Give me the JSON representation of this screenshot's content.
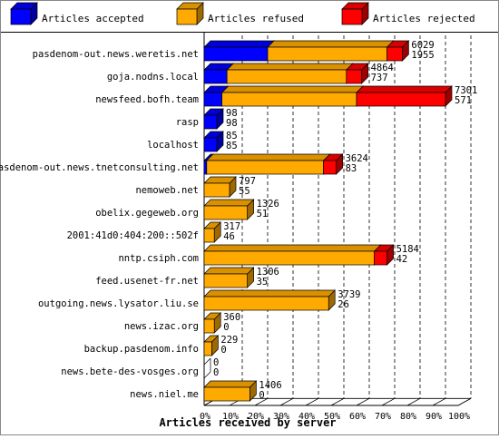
{
  "chart_data": {
    "type": "bar",
    "stacked": true,
    "orientation": "horizontal",
    "title": "",
    "xlabel": "Articles received by server",
    "ylabel": "",
    "xlim": [
      0,
      100
    ],
    "x_ticks": [
      "0%",
      "10%",
      "20%",
      "30%",
      "40%",
      "50%",
      "60%",
      "70%",
      "80%",
      "90%",
      "100%"
    ],
    "grid": true,
    "legend_position": "top",
    "series": [
      {
        "name": "Articles accepted",
        "color": "#0000ff"
      },
      {
        "name": "Articles refused",
        "color": "#ffaa00"
      },
      {
        "name": "Articles rejected",
        "color": "#ff0000"
      }
    ],
    "categories": [
      {
        "label": "pasdenom-out.news.weretis.net",
        "accepted_pct": 25,
        "refused_pct": 47,
        "rejected_pct": 6,
        "total": "6029",
        "second": "1955"
      },
      {
        "label": "goja.nodns.local",
        "accepted_pct": 9,
        "refused_pct": 47,
        "rejected_pct": 6,
        "total": "4864",
        "second": "737"
      },
      {
        "label": "newsfeed.bofh.team",
        "accepted_pct": 7,
        "refused_pct": 53,
        "rejected_pct": 35,
        "total": "7301",
        "second": "571"
      },
      {
        "label": "rasp",
        "accepted_pct": 5,
        "refused_pct": 0,
        "rejected_pct": 0,
        "total": "98",
        "second": "98"
      },
      {
        "label": "localhost",
        "accepted_pct": 5,
        "refused_pct": 0,
        "rejected_pct": 0,
        "total": "85",
        "second": "85"
      },
      {
        "label": "pasdenom-out.news.tnetconsulting.net",
        "accepted_pct": 1,
        "refused_pct": 46,
        "rejected_pct": 5,
        "total": "3624",
        "second": "83"
      },
      {
        "label": "nemoweb.net",
        "accepted_pct": 0,
        "refused_pct": 10,
        "rejected_pct": 0,
        "total": "797",
        "second": "55"
      },
      {
        "label": "obelix.gegeweb.org",
        "accepted_pct": 0,
        "refused_pct": 17,
        "rejected_pct": 0,
        "total": "1326",
        "second": "51"
      },
      {
        "label": "2001:41d0:404:200::502f",
        "accepted_pct": 0,
        "refused_pct": 4,
        "rejected_pct": 0,
        "total": "317",
        "second": "46"
      },
      {
        "label": "nntp.csiph.com",
        "accepted_pct": 0,
        "refused_pct": 67,
        "rejected_pct": 5,
        "total": "5184",
        "second": "42"
      },
      {
        "label": "feed.usenet-fr.net",
        "accepted_pct": 0,
        "refused_pct": 17,
        "rejected_pct": 0,
        "total": "1306",
        "second": "35"
      },
      {
        "label": "outgoing.news.lysator.liu.se",
        "accepted_pct": 0,
        "refused_pct": 49,
        "rejected_pct": 0,
        "total": "3739",
        "second": "26"
      },
      {
        "label": "news.izac.org",
        "accepted_pct": 0,
        "refused_pct": 4,
        "rejected_pct": 0,
        "total": "360",
        "second": "0"
      },
      {
        "label": "backup.pasdenom.info",
        "accepted_pct": 0,
        "refused_pct": 3,
        "rejected_pct": 0,
        "total": "229",
        "second": "0"
      },
      {
        "label": "news.bete-des-vosges.org",
        "accepted_pct": 0,
        "refused_pct": 0,
        "rejected_pct": 0,
        "total": "0",
        "second": "0"
      },
      {
        "label": "news.niel.me",
        "accepted_pct": 0,
        "refused_pct": 18,
        "rejected_pct": 0,
        "total": "1406",
        "second": "0"
      }
    ]
  }
}
